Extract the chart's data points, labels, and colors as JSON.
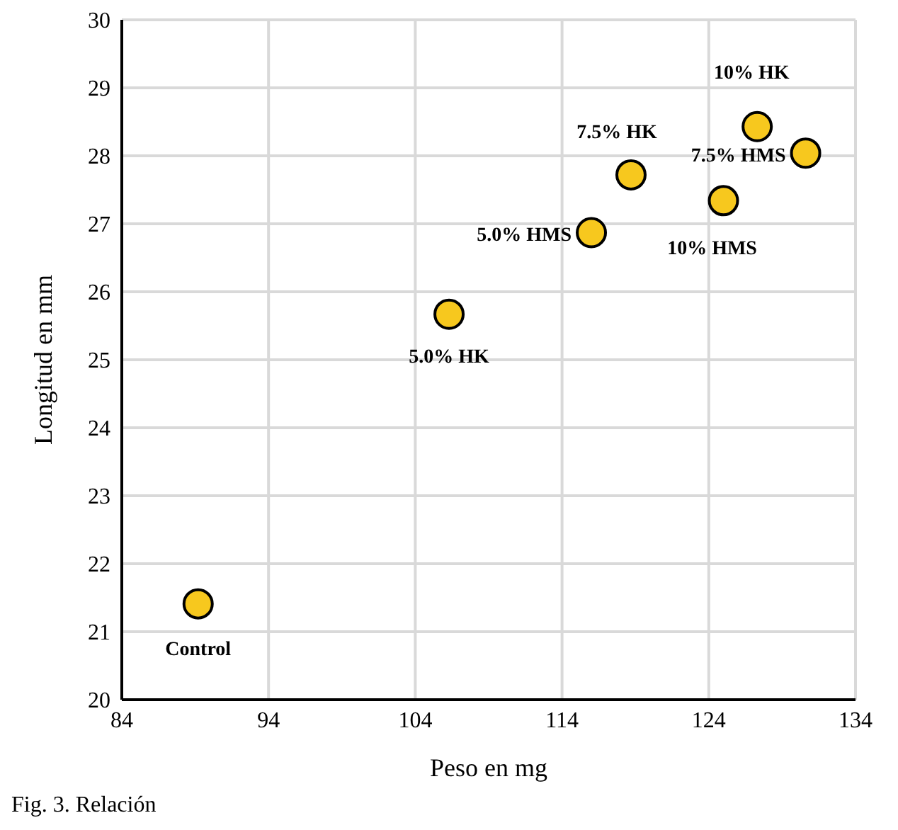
{
  "chart_data": {
    "type": "scatter",
    "xlabel": "Peso en mg",
    "ylabel": "Longitud  en mm",
    "x": [
      89.2,
      106.3,
      116.0,
      118.7,
      125.0,
      127.3,
      130.6
    ],
    "series": [
      {
        "color": "#f7c81e",
        "values": [
          21.41,
          25.67,
          26.87,
          27.72,
          27.34,
          28.43,
          28.04
        ]
      }
    ],
    "xlim": [
      84,
      134
    ],
    "xticks": [
      84,
      94,
      104,
      114,
      124,
      134
    ],
    "ylim": [
      20,
      30
    ],
    "yticks": [
      20,
      21,
      22,
      23,
      24,
      25,
      26,
      27,
      28,
      29,
      30
    ],
    "grid": true,
    "marker": "circle",
    "annotations": [
      {
        "text": "Control",
        "x": 89.2,
        "y": 21.41
      },
      {
        "text": "5.0% HK",
        "x": 106.3,
        "y": 25.67
      },
      {
        "text": "5.0% HMS",
        "x": 116.0,
        "y": 26.87
      },
      {
        "text": "7.5% HK",
        "x": 118.7,
        "y": 27.72
      },
      {
        "text": "10% HMS",
        "x": 125.0,
        "y": 27.34
      },
      {
        "text": "10% HK",
        "x": 127.3,
        "y": 28.43
      },
      {
        "text": "7.5% HMS",
        "x": 130.6,
        "y": 28.04
      },
      "Fig. 3. Relación"
    ]
  }
}
